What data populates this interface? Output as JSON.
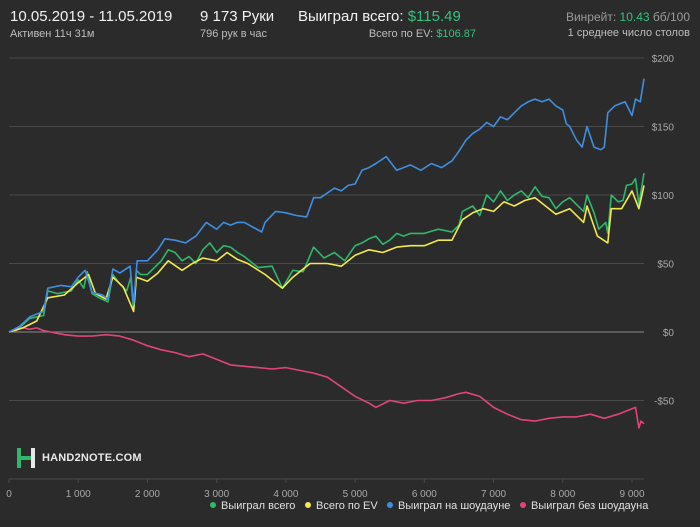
{
  "header": {
    "date_range": "10.05.2019 - 11.05.2019",
    "active_time": "Активен 11ч 31м",
    "hands": "9 173 Руки",
    "hands_per_hour": "796 рук в час",
    "won_total_label": "Выиграл всего:",
    "won_total_value": "$115.49",
    "ev_label": "Всего по EV:",
    "ev_value": "$106.87",
    "winrate_label": "Винрейт:",
    "winrate_value": "10.43",
    "winrate_unit": "бб/100",
    "tables": "1 среднее число столов"
  },
  "logo": {
    "text": "HAND2NOTE.COM"
  },
  "colors": {
    "won_total": "#2fb86b",
    "ev": "#f2e94e",
    "showdown": "#3f8fe0",
    "non_showdown": "#e0457a",
    "grid": "#4a4a4a",
    "zero_line": "#8a8a8a",
    "tick_text": "#a8a8a8",
    "background": "#2b2b2b"
  },
  "chart_data": {
    "type": "line",
    "xlim": [
      0,
      9173
    ],
    "ylim": [
      -100,
      200
    ],
    "x_ticks": [
      0,
      1000,
      2000,
      3000,
      4000,
      5000,
      6000,
      7000,
      8000,
      9000
    ],
    "x_tick_labels": [
      "0",
      "1 000",
      "2 000",
      "3 000",
      "4 000",
      "5 000",
      "6 000",
      "7 000",
      "8 000",
      "9 000"
    ],
    "y_ticks": [
      -50,
      0,
      50,
      100,
      150,
      200
    ],
    "y_tick_labels": [
      "-$50",
      "$0",
      "$50",
      "$100",
      "$150",
      "$200"
    ],
    "grid": true,
    "legend_position": "bottom-right",
    "series": [
      {
        "name": "Выиграл всего",
        "color": "#2fb86b",
        "points": [
          [
            0,
            0
          ],
          [
            150,
            3
          ],
          [
            300,
            10
          ],
          [
            500,
            12
          ],
          [
            560,
            30
          ],
          [
            700,
            28
          ],
          [
            900,
            30
          ],
          [
            1000,
            38
          ],
          [
            1080,
            32
          ],
          [
            1130,
            44
          ],
          [
            1200,
            28
          ],
          [
            1300,
            25
          ],
          [
            1430,
            22
          ],
          [
            1500,
            42
          ],
          [
            1600,
            35
          ],
          [
            1700,
            30
          ],
          [
            1760,
            40
          ],
          [
            1800,
            15
          ],
          [
            1840,
            45
          ],
          [
            1900,
            42
          ],
          [
            2000,
            42
          ],
          [
            2100,
            47
          ],
          [
            2200,
            52
          ],
          [
            2300,
            60
          ],
          [
            2400,
            58
          ],
          [
            2500,
            52
          ],
          [
            2600,
            55
          ],
          [
            2700,
            50
          ],
          [
            2800,
            60
          ],
          [
            2900,
            65
          ],
          [
            3000,
            58
          ],
          [
            3100,
            63
          ],
          [
            3200,
            62
          ],
          [
            3300,
            58
          ],
          [
            3400,
            55
          ],
          [
            3600,
            47
          ],
          [
            3800,
            48
          ],
          [
            3950,
            32
          ],
          [
            4100,
            45
          ],
          [
            4250,
            44
          ],
          [
            4400,
            62
          ],
          [
            4550,
            54
          ],
          [
            4700,
            58
          ],
          [
            4850,
            52
          ],
          [
            5000,
            63
          ],
          [
            5100,
            65
          ],
          [
            5200,
            68
          ],
          [
            5300,
            70
          ],
          [
            5400,
            64
          ],
          [
            5500,
            67
          ],
          [
            5600,
            72
          ],
          [
            5700,
            70
          ],
          [
            5800,
            72
          ],
          [
            6000,
            72
          ],
          [
            6200,
            75
          ],
          [
            6400,
            73
          ],
          [
            6500,
            78
          ],
          [
            6550,
            88
          ],
          [
            6700,
            92
          ],
          [
            6800,
            85
          ],
          [
            6900,
            100
          ],
          [
            7000,
            95
          ],
          [
            7100,
            103
          ],
          [
            7200,
            96
          ],
          [
            7300,
            100
          ],
          [
            7400,
            103
          ],
          [
            7500,
            98
          ],
          [
            7600,
            106
          ],
          [
            7700,
            99
          ],
          [
            7800,
            98
          ],
          [
            7900,
            90
          ],
          [
            8000,
            95
          ],
          [
            8100,
            98
          ],
          [
            8200,
            93
          ],
          [
            8300,
            88
          ],
          [
            8350,
            100
          ],
          [
            8450,
            87
          ],
          [
            8520,
            75
          ],
          [
            8620,
            80
          ],
          [
            8650,
            72
          ],
          [
            8700,
            100
          ],
          [
            8800,
            95
          ],
          [
            8870,
            96
          ],
          [
            8920,
            107
          ],
          [
            9000,
            108
          ],
          [
            9050,
            112
          ],
          [
            9100,
            93
          ],
          [
            9173,
            116
          ]
        ]
      },
      {
        "name": "Всего по EV",
        "color": "#f2e94e",
        "points": [
          [
            0,
            0
          ],
          [
            200,
            3
          ],
          [
            400,
            8
          ],
          [
            560,
            25
          ],
          [
            800,
            27
          ],
          [
            1000,
            36
          ],
          [
            1150,
            42
          ],
          [
            1250,
            28
          ],
          [
            1400,
            24
          ],
          [
            1500,
            40
          ],
          [
            1650,
            33
          ],
          [
            1800,
            15
          ],
          [
            1840,
            40
          ],
          [
            2000,
            37
          ],
          [
            2150,
            43
          ],
          [
            2300,
            52
          ],
          [
            2500,
            45
          ],
          [
            2650,
            50
          ],
          [
            2800,
            54
          ],
          [
            3000,
            52
          ],
          [
            3150,
            58
          ],
          [
            3300,
            53
          ],
          [
            3450,
            50
          ],
          [
            3700,
            42
          ],
          [
            3950,
            32
          ],
          [
            4100,
            40
          ],
          [
            4350,
            50
          ],
          [
            4600,
            50
          ],
          [
            4800,
            48
          ],
          [
            5000,
            56
          ],
          [
            5200,
            60
          ],
          [
            5400,
            58
          ],
          [
            5600,
            62
          ],
          [
            5800,
            63
          ],
          [
            6000,
            63
          ],
          [
            6200,
            67
          ],
          [
            6400,
            67
          ],
          [
            6550,
            82
          ],
          [
            6700,
            87
          ],
          [
            6850,
            90
          ],
          [
            7000,
            88
          ],
          [
            7150,
            95
          ],
          [
            7300,
            92
          ],
          [
            7450,
            96
          ],
          [
            7600,
            98
          ],
          [
            7750,
            92
          ],
          [
            7900,
            86
          ],
          [
            8100,
            90
          ],
          [
            8300,
            80
          ],
          [
            8350,
            92
          ],
          [
            8500,
            70
          ],
          [
            8650,
            65
          ],
          [
            8700,
            90
          ],
          [
            8850,
            90
          ],
          [
            9000,
            103
          ],
          [
            9100,
            90
          ],
          [
            9173,
            107
          ]
        ]
      },
      {
        "name": "Выиграл на шоудауне",
        "color": "#3f8fe0",
        "points": [
          [
            0,
            0
          ],
          [
            150,
            4
          ],
          [
            300,
            11
          ],
          [
            500,
            15
          ],
          [
            560,
            32
          ],
          [
            750,
            34
          ],
          [
            900,
            33
          ],
          [
            1000,
            40
          ],
          [
            1100,
            45
          ],
          [
            1200,
            29
          ],
          [
            1350,
            27
          ],
          [
            1430,
            24
          ],
          [
            1500,
            46
          ],
          [
            1600,
            43
          ],
          [
            1750,
            48
          ],
          [
            1800,
            20
          ],
          [
            1850,
            52
          ],
          [
            2000,
            52
          ],
          [
            2150,
            60
          ],
          [
            2250,
            68
          ],
          [
            2400,
            67
          ],
          [
            2550,
            65
          ],
          [
            2700,
            70
          ],
          [
            2850,
            80
          ],
          [
            3000,
            75
          ],
          [
            3100,
            80
          ],
          [
            3200,
            78
          ],
          [
            3300,
            80
          ],
          [
            3400,
            80
          ],
          [
            3650,
            73
          ],
          [
            3700,
            80
          ],
          [
            3850,
            88
          ],
          [
            4000,
            87
          ],
          [
            4150,
            85
          ],
          [
            4300,
            84
          ],
          [
            4400,
            98
          ],
          [
            4500,
            98
          ],
          [
            4700,
            105
          ],
          [
            4800,
            103
          ],
          [
            4900,
            107
          ],
          [
            5000,
            108
          ],
          [
            5100,
            118
          ],
          [
            5200,
            120
          ],
          [
            5300,
            123
          ],
          [
            5450,
            128
          ],
          [
            5600,
            118
          ],
          [
            5800,
            122
          ],
          [
            5950,
            118
          ],
          [
            6100,
            123
          ],
          [
            6250,
            120
          ],
          [
            6400,
            125
          ],
          [
            6500,
            132
          ],
          [
            6600,
            140
          ],
          [
            6700,
            145
          ],
          [
            6800,
            148
          ],
          [
            6900,
            153
          ],
          [
            7000,
            150
          ],
          [
            7100,
            157
          ],
          [
            7200,
            155
          ],
          [
            7300,
            160
          ],
          [
            7400,
            165
          ],
          [
            7500,
            168
          ],
          [
            7600,
            170
          ],
          [
            7700,
            168
          ],
          [
            7800,
            170
          ],
          [
            7900,
            165
          ],
          [
            8000,
            162
          ],
          [
            8050,
            152
          ],
          [
            8100,
            150
          ],
          [
            8200,
            140
          ],
          [
            8280,
            135
          ],
          [
            8350,
            150
          ],
          [
            8450,
            135
          ],
          [
            8550,
            133
          ],
          [
            8600,
            135
          ],
          [
            8650,
            160
          ],
          [
            8750,
            165
          ],
          [
            8900,
            168
          ],
          [
            9000,
            158
          ],
          [
            9050,
            170
          ],
          [
            9120,
            168
          ],
          [
            9173,
            185
          ]
        ]
      },
      {
        "name": "Выиграл без шоудауна",
        "color": "#e0457a",
        "points": [
          [
            0,
            0
          ],
          [
            100,
            1
          ],
          [
            200,
            3
          ],
          [
            300,
            2
          ],
          [
            400,
            3
          ],
          [
            500,
            1
          ],
          [
            600,
            0
          ],
          [
            800,
            -2
          ],
          [
            1000,
            -3
          ],
          [
            1200,
            -3
          ],
          [
            1400,
            -2
          ],
          [
            1600,
            -3
          ],
          [
            1800,
            -6
          ],
          [
            2000,
            -10
          ],
          [
            2200,
            -13
          ],
          [
            2400,
            -15
          ],
          [
            2600,
            -18
          ],
          [
            2800,
            -16
          ],
          [
            3000,
            -20
          ],
          [
            3200,
            -24
          ],
          [
            3400,
            -25
          ],
          [
            3600,
            -26
          ],
          [
            3800,
            -27
          ],
          [
            4000,
            -26
          ],
          [
            4200,
            -28
          ],
          [
            4400,
            -30
          ],
          [
            4600,
            -33
          ],
          [
            4800,
            -40
          ],
          [
            5000,
            -47
          ],
          [
            5200,
            -52
          ],
          [
            5300,
            -55
          ],
          [
            5500,
            -50
          ],
          [
            5700,
            -52
          ],
          [
            5900,
            -50
          ],
          [
            6100,
            -50
          ],
          [
            6300,
            -48
          ],
          [
            6500,
            -45
          ],
          [
            6600,
            -44
          ],
          [
            6800,
            -47
          ],
          [
            7000,
            -55
          ],
          [
            7200,
            -60
          ],
          [
            7400,
            -64
          ],
          [
            7600,
            -65
          ],
          [
            7800,
            -63
          ],
          [
            8000,
            -62
          ],
          [
            8200,
            -62
          ],
          [
            8400,
            -60
          ],
          [
            8600,
            -63
          ],
          [
            8800,
            -60
          ],
          [
            8950,
            -57
          ],
          [
            9050,
            -55
          ],
          [
            9100,
            -70
          ],
          [
            9130,
            -65
          ],
          [
            9173,
            -67
          ]
        ]
      }
    ]
  }
}
